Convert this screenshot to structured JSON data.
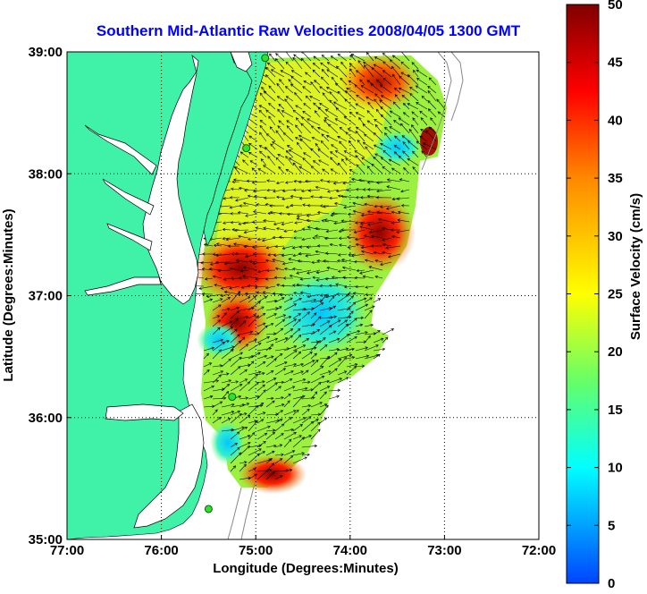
{
  "title": "Southern Mid-Atlantic Raw Velocities 2008/04/05 1300 GMT",
  "title_color": "#0000ff",
  "map": {
    "land_color": "#3ff2a8",
    "background_color": "#ffffff",
    "lon_range": [
      -77,
      -72
    ],
    "lat_range": [
      35,
      39
    ],
    "xlabel": "Longitude (Degrees:Minutes)",
    "ylabel": "Latitude (Degrees:Minutes)",
    "x_ticks": [
      {
        "value": -77,
        "label": "77:00"
      },
      {
        "value": -76,
        "label": "76:00"
      },
      {
        "value": -75,
        "label": "75:00"
      },
      {
        "value": -74,
        "label": "74:00"
      },
      {
        "value": -73,
        "label": "73:00"
      },
      {
        "value": -72,
        "label": "72:00"
      }
    ],
    "y_ticks": [
      {
        "value": 35,
        "label": "35:00"
      },
      {
        "value": 36,
        "label": "36:00"
      },
      {
        "value": 37,
        "label": "37:00"
      },
      {
        "value": 38,
        "label": "38:00"
      },
      {
        "value": 39,
        "label": "39:00"
      }
    ],
    "grid": "dotted",
    "radar_sites": [
      {
        "lon": -74.9,
        "lat": 38.95
      },
      {
        "lon": -75.1,
        "lat": 38.21
      },
      {
        "lon": -75.25,
        "lat": 36.17
      },
      {
        "lon": -75.5,
        "lat": 35.25
      }
    ]
  },
  "colorbar": {
    "label": "Surface Velocity (cm/s)",
    "range": [
      0,
      50
    ],
    "units": "cm/s",
    "ticks": [
      {
        "value": 0,
        "label": "0"
      },
      {
        "value": 5,
        "label": "5"
      },
      {
        "value": 10,
        "label": "10"
      },
      {
        "value": 15,
        "label": "15"
      },
      {
        "value": 20,
        "label": "20"
      },
      {
        "value": 25,
        "label": "25"
      },
      {
        "value": 30,
        "label": "30"
      },
      {
        "value": 35,
        "label": "35"
      },
      {
        "value": 40,
        "label": "40"
      },
      {
        "value": 45,
        "label": "45"
      },
      {
        "value": 50,
        "label": "50"
      }
    ],
    "colormap": [
      "#0044ff",
      "#00ffff",
      "#66ff66",
      "#ffff00",
      "#ff8800",
      "#ff0000",
      "#800000"
    ]
  }
}
